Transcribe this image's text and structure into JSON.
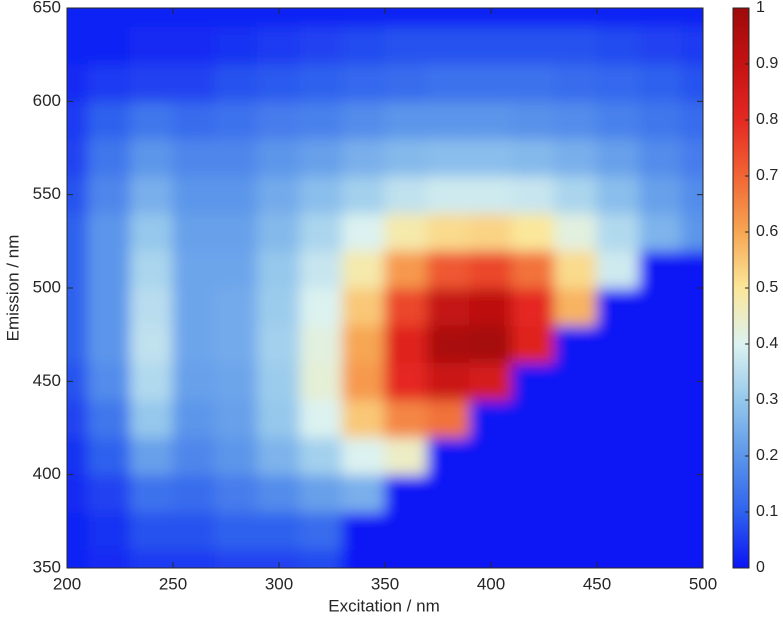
{
  "chart_data": {
    "type": "heatmap",
    "xlabel": "Excitation / nm",
    "ylabel": "Emission / nm",
    "x": [
      200,
      220,
      240,
      260,
      280,
      300,
      320,
      340,
      360,
      380,
      400,
      420,
      440,
      460,
      480,
      500
    ],
    "y": [
      350,
      370,
      390,
      410,
      430,
      450,
      470,
      490,
      510,
      530,
      550,
      570,
      590,
      610,
      630,
      650
    ],
    "z": [
      [
        0.02,
        0.03,
        0.05,
        0.05,
        0.06,
        0.06,
        0.07,
        0,
        0,
        0,
        0,
        0,
        0,
        0,
        0,
        0
      ],
      [
        0.02,
        0.04,
        0.08,
        0.08,
        0.1,
        0.1,
        0.12,
        0,
        0,
        0,
        0,
        0,
        0,
        0,
        0,
        0
      ],
      [
        0.03,
        0.06,
        0.13,
        0.12,
        0.15,
        0.18,
        0.22,
        0.25,
        0,
        0,
        0,
        0,
        0,
        0,
        0,
        0
      ],
      [
        0.04,
        0.1,
        0.22,
        0.17,
        0.2,
        0.26,
        0.32,
        0.4,
        0.45,
        0,
        0,
        0,
        0,
        0,
        0,
        0
      ],
      [
        0.06,
        0.14,
        0.3,
        0.2,
        0.22,
        0.3,
        0.4,
        0.55,
        0.65,
        0.68,
        0,
        0,
        0,
        0,
        0,
        0
      ],
      [
        0.08,
        0.18,
        0.34,
        0.22,
        0.23,
        0.31,
        0.43,
        0.62,
        0.8,
        0.88,
        0.85,
        0,
        0,
        0,
        0,
        0
      ],
      [
        0.1,
        0.2,
        0.36,
        0.23,
        0.24,
        0.32,
        0.42,
        0.6,
        0.82,
        0.97,
        0.98,
        0.82,
        0,
        0,
        0,
        0
      ],
      [
        0.1,
        0.2,
        0.35,
        0.23,
        0.24,
        0.31,
        0.4,
        0.55,
        0.75,
        0.9,
        0.92,
        0.8,
        0.58,
        0,
        0,
        0
      ],
      [
        0.1,
        0.2,
        0.33,
        0.23,
        0.23,
        0.3,
        0.37,
        0.48,
        0.62,
        0.72,
        0.75,
        0.68,
        0.52,
        0.38,
        0,
        0
      ],
      [
        0.1,
        0.2,
        0.3,
        0.22,
        0.22,
        0.27,
        0.33,
        0.4,
        0.48,
        0.52,
        0.53,
        0.5,
        0.42,
        0.34,
        0.26,
        0.2
      ],
      [
        0.08,
        0.17,
        0.25,
        0.2,
        0.2,
        0.24,
        0.28,
        0.32,
        0.36,
        0.38,
        0.38,
        0.37,
        0.33,
        0.28,
        0.22,
        0.18
      ],
      [
        0.06,
        0.14,
        0.2,
        0.17,
        0.17,
        0.2,
        0.22,
        0.25,
        0.27,
        0.28,
        0.28,
        0.27,
        0.25,
        0.22,
        0.18,
        0.15
      ],
      [
        0.05,
        0.1,
        0.14,
        0.12,
        0.13,
        0.15,
        0.16,
        0.18,
        0.2,
        0.2,
        0.2,
        0.19,
        0.18,
        0.16,
        0.14,
        0.12
      ],
      [
        0.03,
        0.05,
        0.06,
        0.06,
        0.08,
        0.09,
        0.1,
        0.11,
        0.12,
        0.13,
        0.13,
        0.13,
        0.12,
        0.11,
        0.1,
        0.08
      ],
      [
        0.02,
        0.02,
        0.03,
        0.03,
        0.04,
        0.05,
        0.06,
        0.07,
        0.08,
        0.08,
        0.08,
        0.08,
        0.08,
        0.07,
        0.06,
        0.05
      ],
      [
        0.02,
        0.02,
        0.02,
        0.02,
        0.02,
        0.02,
        0.02,
        0.02,
        0.02,
        0.02,
        0.02,
        0.02,
        0.02,
        0.02,
        0.02,
        0.02
      ]
    ],
    "xlim": [
      200,
      500
    ],
    "xticks": [
      200,
      250,
      300,
      350,
      400,
      450,
      500
    ],
    "ylim": [
      350,
      650
    ],
    "yticks": [
      350,
      400,
      450,
      500,
      550,
      600,
      650
    ],
    "clim": [
      0,
      1
    ],
    "colorbar_ticks": [
      0,
      0.1,
      0.2,
      0.3,
      0.4,
      0.5,
      0.6,
      0.7,
      0.8,
      0.9,
      1
    ],
    "colormap": [
      "#0a14f5",
      "#2f62ee",
      "#5c96ea",
      "#95c8ec",
      "#dcf2f0",
      "#fbe79a",
      "#f7a653",
      "#f16534",
      "#e52822",
      "#c51212",
      "#9e0a0a"
    ]
  }
}
